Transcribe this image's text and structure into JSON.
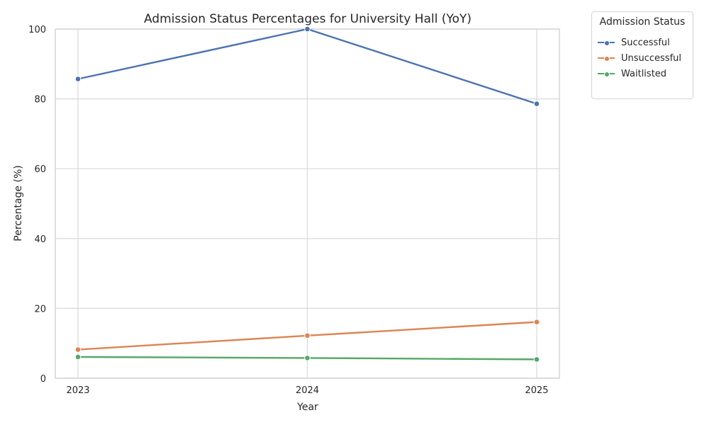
{
  "chart_data": {
    "type": "line",
    "title": "Admission Status Percentages for University Hall (YoY)",
    "xlabel": "Year",
    "ylabel": "Percentage (%)",
    "x": [
      "2023",
      "2024",
      "2025"
    ],
    "ylim": [
      0,
      100
    ],
    "yticks": [
      "0",
      "20",
      "40",
      "60",
      "80",
      "100"
    ],
    "grid": true,
    "legend": {
      "title": "Admission Status",
      "placement": "outside top-right"
    },
    "series": [
      {
        "name": "Successful",
        "color": "#4c72b0",
        "values": [
          85.7,
          100.0,
          78.6
        ]
      },
      {
        "name": "Unsuccessful",
        "color": "#dd8452",
        "values": [
          8.2,
          12.2,
          16.1
        ]
      },
      {
        "name": "Waitlisted",
        "color": "#55a868",
        "values": [
          6.1,
          5.8,
          5.4
        ]
      }
    ]
  }
}
